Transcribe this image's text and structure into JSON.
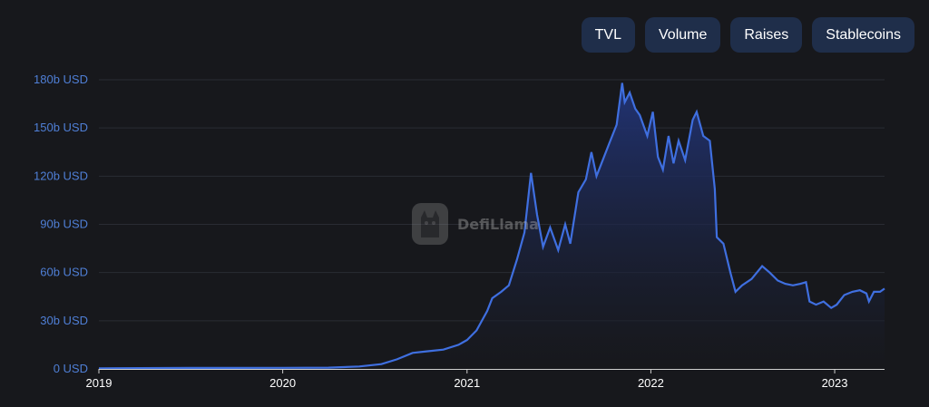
{
  "tabs": [
    {
      "label": "TVL"
    },
    {
      "label": "Volume"
    },
    {
      "label": "Raises"
    },
    {
      "label": "Stablecoins"
    }
  ],
  "watermark": {
    "text": "DefiLlama",
    "icon": "llama-logo-icon"
  },
  "colors": {
    "line": "#3f6fe0",
    "fill_top": "#22357a",
    "grid": "#2a2c33",
    "ytick": "#4f7fd6",
    "xtick": "#ffffff"
  },
  "chart_data": {
    "type": "area",
    "title": "",
    "xlabel": "",
    "ylabel": "",
    "x_ticks": [
      "2019",
      "2020",
      "2021",
      "2022",
      "2023"
    ],
    "y_ticks": [
      "0 USD",
      "30b USD",
      "60b USD",
      "90b USD",
      "120b USD",
      "150b USD",
      "180b USD"
    ],
    "ylim": [
      0,
      180
    ],
    "xlim": [
      "2019-01-01",
      "2023-04-10"
    ],
    "grid": true,
    "series": [
      {
        "x": [
          "2019-01-01",
          "2019-07-01",
          "2020-01-01",
          "2020-04-01",
          "2020-06-01",
          "2020-07-15",
          "2020-08-15",
          "2020-09-15",
          "2020-10-15",
          "2020-11-15",
          "2020-12-15",
          "2021-01-01",
          "2021-01-20",
          "2021-02-10",
          "2021-02-20",
          "2021-03-10",
          "2021-03-25",
          "2021-04-10",
          "2021-04-25",
          "2021-05-08",
          "2021-05-20",
          "2021-06-01",
          "2021-06-15",
          "2021-07-01",
          "2021-07-15",
          "2021-07-25",
          "2021-08-10",
          "2021-08-25",
          "2021-09-05",
          "2021-09-15",
          "2021-09-25",
          "2021-10-10",
          "2021-10-25",
          "2021-11-05",
          "2021-11-10",
          "2021-11-20",
          "2021-12-01",
          "2021-12-10",
          "2021-12-25",
          "2022-01-05",
          "2022-01-15",
          "2022-01-25",
          "2022-02-05",
          "2022-02-15",
          "2022-02-25",
          "2022-03-10",
          "2022-03-25",
          "2022-04-02",
          "2022-04-15",
          "2022-04-28",
          "2022-05-08",
          "2022-05-12",
          "2022-05-25",
          "2022-06-08",
          "2022-06-18",
          "2022-07-01",
          "2022-07-20",
          "2022-08-10",
          "2022-08-25",
          "2022-09-10",
          "2022-09-25",
          "2022-10-10",
          "2022-10-25",
          "2022-11-05",
          "2022-11-12",
          "2022-11-25",
          "2022-12-10",
          "2022-12-25",
          "2023-01-05",
          "2023-01-20",
          "2023-02-05",
          "2023-02-20",
          "2023-03-05",
          "2023-03-10",
          "2023-03-20",
          "2023-04-01",
          "2023-04-10"
        ],
        "values": [
          0.4,
          0.6,
          0.7,
          0.8,
          1.5,
          3,
          6,
          10,
          11,
          12,
          15,
          18,
          24,
          36,
          44,
          48,
          52,
          68,
          85,
          122,
          96,
          76,
          88,
          74,
          90,
          78,
          110,
          118,
          135,
          120,
          128,
          140,
          152,
          178,
          166,
          172,
          162,
          158,
          145,
          160,
          132,
          124,
          145,
          128,
          142,
          130,
          155,
          160,
          145,
          142,
          112,
          82,
          78,
          60,
          48,
          52,
          56,
          64,
          60,
          55,
          53,
          52,
          53,
          54,
          42,
          40,
          42,
          38,
          40,
          46,
          48,
          49,
          47,
          42,
          48,
          48,
          50
        ]
      }
    ]
  }
}
